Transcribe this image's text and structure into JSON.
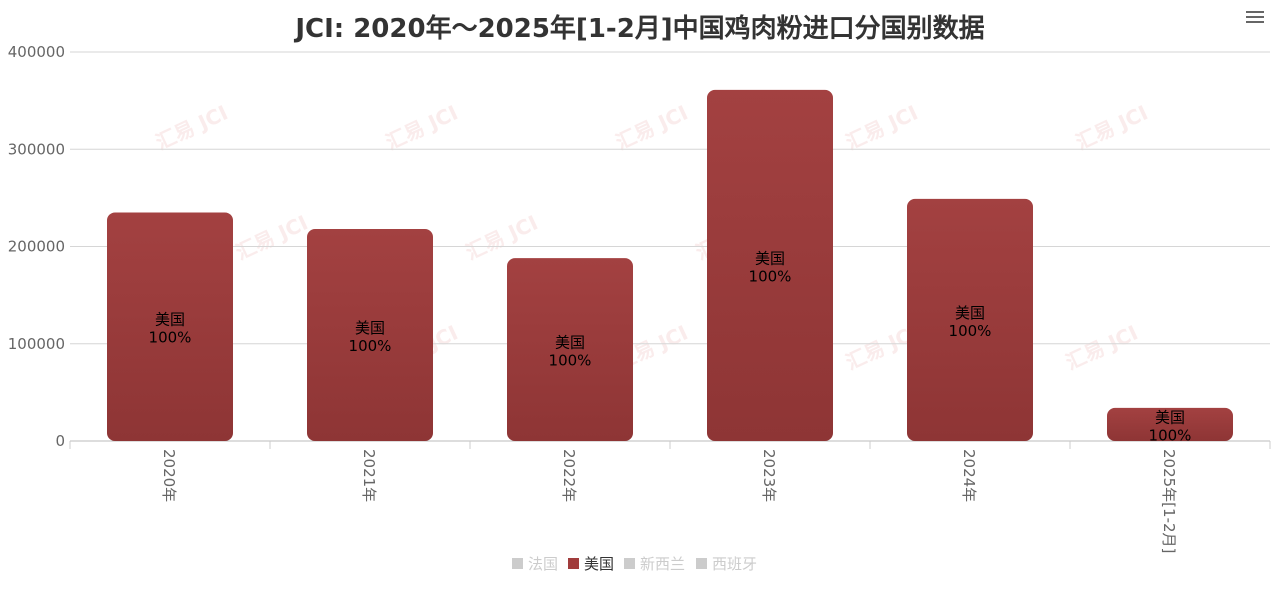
{
  "chart_data": {
    "type": "bar",
    "title": "JCI: 2020年～2025年[1-2月]中国鸡肉粉进口分国别数据",
    "categories": [
      "2020年",
      "2021年",
      "2022年",
      "2023年",
      "2024年",
      "2025年[1-2月]"
    ],
    "series": [
      {
        "name": "法国",
        "values": [
          0,
          0,
          0,
          0,
          0,
          0
        ],
        "visible": false
      },
      {
        "name": "美国",
        "values": [
          235000,
          218000,
          188000,
          361000,
          249000,
          34000
        ],
        "visible": true,
        "labels": [
          "美国\n100%",
          "美国\n100%",
          "美国\n100%",
          "美国\n100%",
          "美国\n100%",
          "美国\n100%"
        ]
      },
      {
        "name": "新西兰",
        "values": [
          0,
          0,
          0,
          0,
          0,
          0
        ],
        "visible": false
      },
      {
        "name": "西班牙",
        "values": [
          0,
          0,
          0,
          0,
          0,
          0
        ],
        "visible": false
      }
    ],
    "y_ticks": [
      "0",
      "100000",
      "200000",
      "300000",
      "400000"
    ],
    "ylim": [
      0,
      400000
    ],
    "xlabel": "",
    "ylabel": "",
    "grid": true,
    "legend_position": "bottom-center",
    "bar_color": "#a13c3c",
    "hidden_color": "#cccccc",
    "watermark": "汇易 JCI"
  },
  "menu_icon": "hamburger-menu-icon"
}
